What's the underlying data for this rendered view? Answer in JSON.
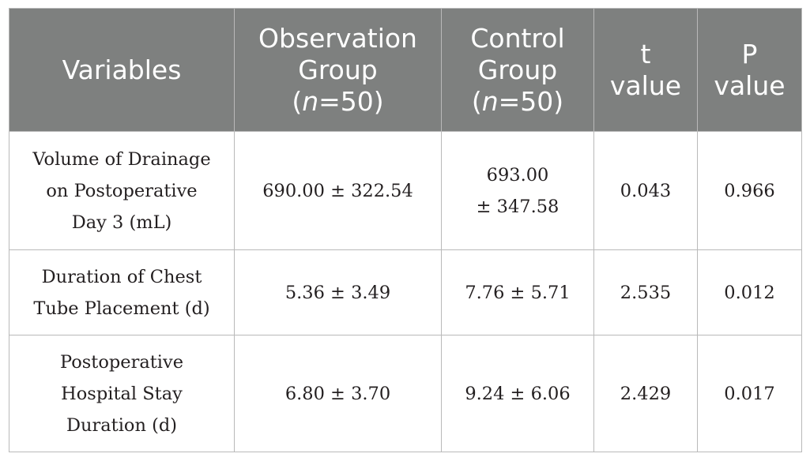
{
  "table": {
    "headers": {
      "variables": "Variables",
      "obs_line1": "Observation",
      "obs_line2": "Group",
      "obs_n_open": "(",
      "obs_n_var": "n",
      "obs_n_rest": "=50)",
      "ctrl_line1": "Control",
      "ctrl_line2": "Group",
      "ctrl_n_open": "(",
      "ctrl_n_var": "n",
      "ctrl_n_rest": "=50)",
      "t_line1": "t",
      "t_line2": "value",
      "p_line1": "P",
      "p_line2": "value"
    },
    "rows": [
      {
        "variable_lines": [
          "Volume of Drainage",
          "on Postoperative",
          "Day 3 (mL)"
        ],
        "observation": "690.00 ± 322.54",
        "control_lines": [
          "693.00",
          "± 347.58"
        ],
        "t": "0.043",
        "p": "0.966"
      },
      {
        "variable_lines": [
          "Duration of Chest",
          "Tube Placement (d)"
        ],
        "observation": "5.36 ± 3.49",
        "control_lines": [
          "7.76 ± 5.71"
        ],
        "t": "2.535",
        "p": "0.012"
      },
      {
        "variable_lines": [
          "Postoperative",
          "Hospital Stay",
          "Duration (d)"
        ],
        "observation": "6.80 ± 3.70",
        "control_lines": [
          "9.24 ± 6.06"
        ],
        "t": "2.429",
        "p": "0.017"
      }
    ]
  }
}
